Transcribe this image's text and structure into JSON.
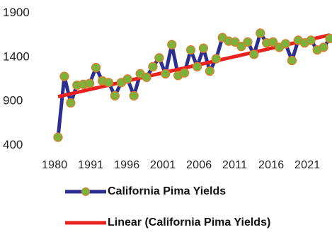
{
  "chart_data": {
    "type": "line",
    "y_ticks": [
      400,
      900,
      1400,
      1900
    ],
    "ylim": [
      400,
      1900
    ],
    "xlim": [
      1980,
      2023
    ],
    "x_tick_labels": [
      "1980",
      "1991",
      "1996",
      "2001",
      "2006",
      "2011",
      "2016",
      "2021"
    ],
    "series": [
      {
        "name": "California Pima Yields",
        "line_color": "#2b2f8f",
        "marker_color": "#7ab33c",
        "marker_edge": "#e07a2a",
        "x": [
          1980,
          1981,
          1982,
          1983,
          1984,
          1985,
          1986,
          1987,
          1988,
          1989,
          1990,
          1991,
          1992,
          1993,
          1994,
          1995,
          1996,
          1997,
          1998,
          1999,
          2000,
          2001,
          2002,
          2003,
          2004,
          2005,
          2006,
          2007,
          2008,
          2009,
          2010,
          2011,
          2012,
          2013,
          2014,
          2015,
          2016,
          2017,
          2018,
          2019,
          2020,
          2021,
          2022,
          2023
        ],
        "values": [
          480,
          1170,
          870,
          1070,
          1080,
          1090,
          1270,
          1120,
          1100,
          950,
          1100,
          1140,
          950,
          1200,
          1160,
          1280,
          1380,
          1200,
          1530,
          1180,
          1210,
          1470,
          1280,
          1490,
          1230,
          1370,
          1610,
          1570,
          1560,
          1510,
          1560,
          1420,
          1660,
          1550,
          1560,
          1500,
          1540,
          1350,
          1580,
          1550,
          1580,
          1470,
          1500,
          1600
        ]
      },
      {
        "name": "Linear (California Pima Yields)",
        "line_color": "#e8231f",
        "x": [
          1980,
          2023
        ],
        "values": [
          940,
          1640
        ]
      }
    ],
    "legend_position": "bottom",
    "grid": false
  }
}
